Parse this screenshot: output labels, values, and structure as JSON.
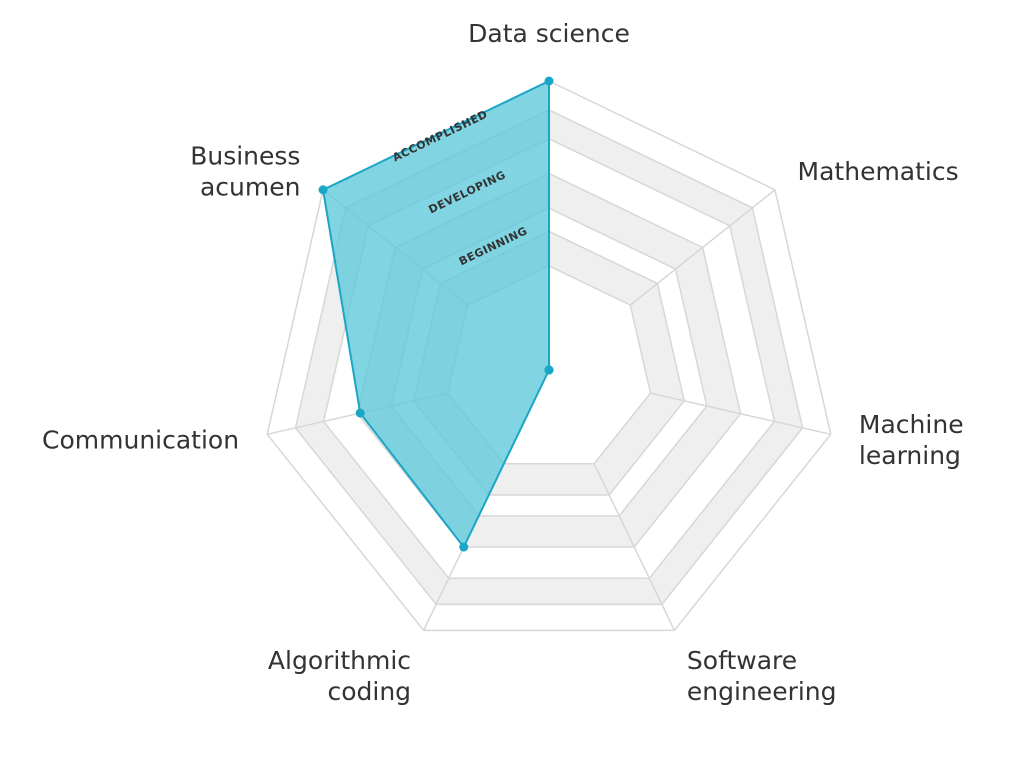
{
  "chart_data": {
    "type": "radar",
    "axes": [
      [
        "Data science"
      ],
      [
        "Mathematics"
      ],
      [
        "Machine",
        "learning"
      ],
      [
        "Software",
        "engineering"
      ],
      [
        "Algorithmic",
        "coding"
      ],
      [
        "Communication"
      ],
      [
        "Business",
        "acumen"
      ]
    ],
    "levels": [
      "BEGINNING",
      "DEVELOPING",
      "ACCOMPLISHED"
    ],
    "scale": [
      0,
      1
    ],
    "values": [
      1.0,
      0.0,
      0.0,
      0.0,
      0.68,
      0.67,
      1.0
    ],
    "grid": true,
    "colors": {
      "fill": "#5ec8da",
      "stroke": "#1aa6c6",
      "band": "#efefef",
      "grid": "#d7d7d7",
      "text": "#333333"
    }
  }
}
